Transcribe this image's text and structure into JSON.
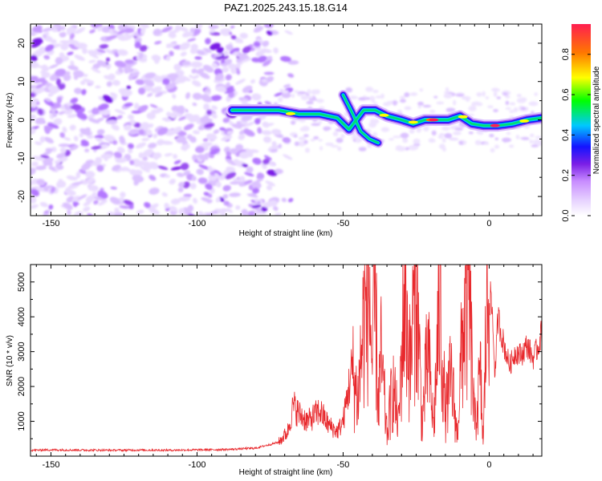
{
  "chart_data": [
    {
      "type": "heatmap",
      "title": "PAZ1.2025.243.15.18.G14",
      "xlabel": "Height of straight line (km)",
      "ylabel": "Frequency (Hz)",
      "xlim": [
        -157,
        18
      ],
      "ylim": [
        -25,
        25
      ],
      "x_ticks": [
        -150,
        -100,
        -50,
        0
      ],
      "y_ticks": [
        -20,
        -10,
        0,
        10,
        20
      ],
      "colorbar": {
        "label": "Normalized spectral amplitude",
        "range": [
          0,
          0.95
        ],
        "ticks": [
          "0.0",
          "0.2",
          "0.4",
          "0.6",
          "0.8"
        ],
        "colormap": [
          "#ffffff",
          "#e6d2ff",
          "#c88cff",
          "#7a1ee6",
          "#1414ff",
          "#00c8ff",
          "#00ff00",
          "#ffff00",
          "#ff7800",
          "#ff1e50"
        ]
      },
      "noise_region": {
        "x_range": [
          -157,
          -73
        ],
        "level": "0.1–0.35"
      },
      "signal_ridge": [
        {
          "x": -88,
          "freq": 2.5
        },
        {
          "x": -80,
          "freq": 2.5
        },
        {
          "x": -72,
          "freq": 2.5
        },
        {
          "x": -65,
          "freq": 1.5
        },
        {
          "x": -58,
          "freq": 1.5
        },
        {
          "x": -52,
          "freq": 0.5
        },
        {
          "x": -48,
          "freq": -2.5
        },
        {
          "x": -43,
          "freq": 2.5
        },
        {
          "x": -39,
          "freq": 2.5
        },
        {
          "x": -35,
          "freq": 1.0
        },
        {
          "x": -30,
          "freq": 0.0
        },
        {
          "x": -26,
          "freq": -1.0
        },
        {
          "x": -22,
          "freq": 0.0
        },
        {
          "x": -18,
          "freq": 0.0
        },
        {
          "x": -14,
          "freq": 0.0
        },
        {
          "x": -10,
          "freq": 1.0
        },
        {
          "x": -6,
          "freq": -1.0
        },
        {
          "x": -2,
          "freq": -1.5
        },
        {
          "x": 3,
          "freq": -1.5
        },
        {
          "x": 8,
          "freq": -1.0
        },
        {
          "x": 13,
          "freq": 0.0
        },
        {
          "x": 18,
          "freq": 0.5
        }
      ],
      "secondary_ridge": [
        {
          "x": -50,
          "freq": 6.5
        },
        {
          "x": -47,
          "freq": 2.0
        },
        {
          "x": -44,
          "freq": -3.0
        },
        {
          "x": -41,
          "freq": -5.0
        },
        {
          "x": -38,
          "freq": -6.0
        }
      ]
    },
    {
      "type": "line",
      "title": "",
      "xlabel": "Height of straight line (km)",
      "ylabel": "SNR (10 * v/v)",
      "xlim": [
        -157,
        18
      ],
      "ylim": [
        0,
        5500
      ],
      "x_ticks": [
        -150,
        -100,
        -50,
        0
      ],
      "y_ticks": [
        1000,
        2000,
        3000,
        4000,
        5000
      ],
      "series": [
        {
          "name": "SNR",
          "color": "#e8282c",
          "x": [
            -157,
            -150,
            -140,
            -130,
            -120,
            -110,
            -100,
            -90,
            -80,
            -72,
            -69,
            -67,
            -65,
            -62,
            -58,
            -55,
            -52,
            -50,
            -47,
            -45,
            -43,
            -41,
            -40,
            -39,
            -38,
            -37,
            -35,
            -33,
            -31,
            -29,
            -27,
            -25,
            -23,
            -21,
            -19,
            -17,
            -15,
            -13,
            -11,
            -9,
            -7,
            -5,
            -3,
            -2,
            -1,
            0,
            1,
            2,
            3,
            5,
            7,
            9,
            11,
            13,
            15,
            17,
            18
          ],
          "values": [
            170,
            180,
            175,
            170,
            175,
            170,
            180,
            190,
            230,
            400,
            700,
            1450,
            1200,
            1000,
            1300,
            900,
            700,
            1000,
            2500,
            1600,
            3800,
            4800,
            2500,
            4500,
            1500,
            2800,
            600,
            2000,
            900,
            4800,
            2500,
            5400,
            900,
            3000,
            800,
            4500,
            1200,
            2300,
            600,
            3600,
            4700,
            900,
            2200,
            300,
            4200,
            4700,
            4200,
            2300,
            4000,
            3200,
            2600,
            3000,
            2900,
            3200,
            2800,
            3200,
            3600
          ]
        }
      ]
    }
  ]
}
